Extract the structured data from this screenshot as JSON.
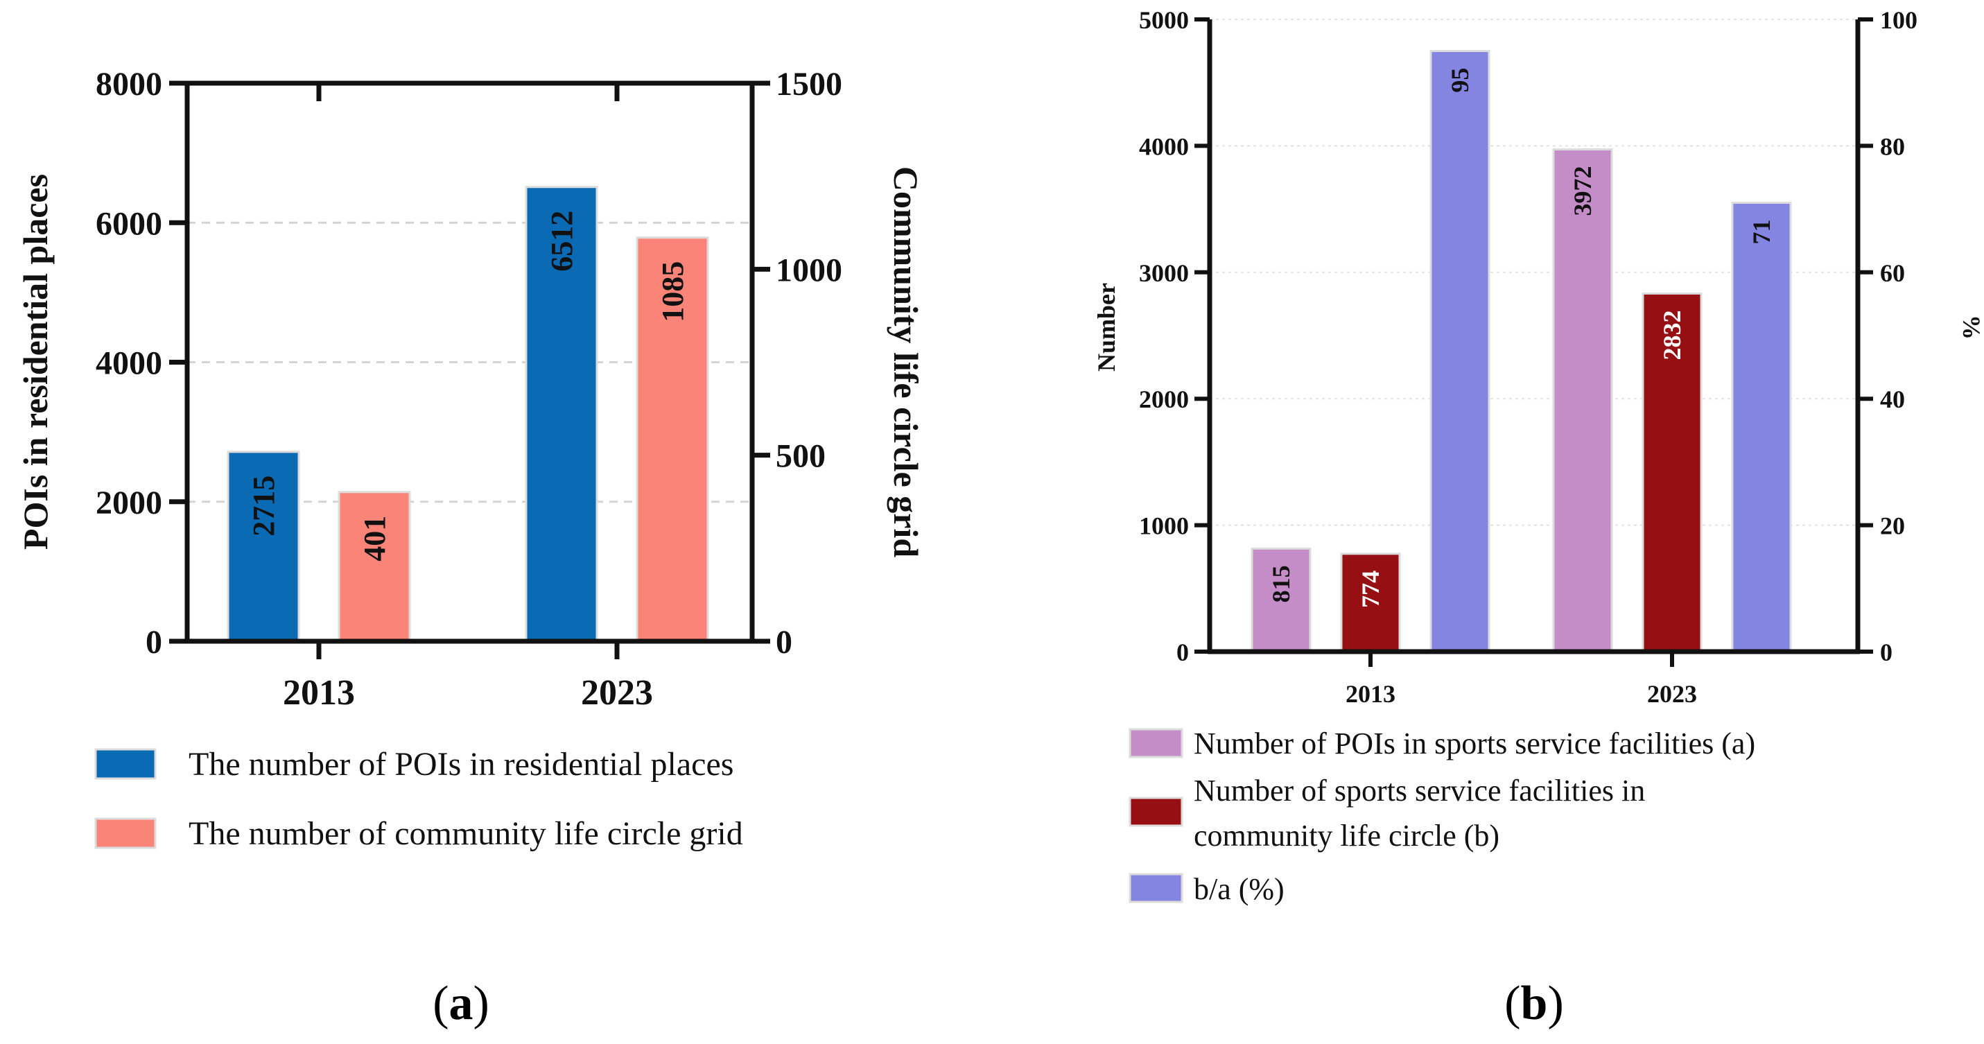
{
  "chart_data": [
    {
      "panel": "a",
      "type": "bar",
      "categories": [
        "2013",
        "2023"
      ],
      "series": [
        {
          "name": "The number of POIs in residential places",
          "axis": "left",
          "color": "#0a6ab4",
          "values": [
            2715,
            6512
          ]
        },
        {
          "name": "The number of community life circle grid",
          "axis": "right",
          "color": "#fa8478",
          "values": [
            401,
            1085
          ]
        }
      ],
      "ylabel": "POIs in residential places",
      "ylabel_right": "Community life circle grid",
      "ylim": [
        0,
        8000
      ],
      "ylim_right": [
        0,
        1500
      ],
      "yticks": [
        "0",
        "2000",
        "4000",
        "6000",
        "8000"
      ],
      "yticks_right": [
        "0",
        "500",
        "1000",
        "1500"
      ],
      "grid": true,
      "legend_position": "bottom"
    },
    {
      "panel": "b",
      "type": "bar",
      "categories": [
        "2013",
        "2023"
      ],
      "series": [
        {
          "name": "Number of POIs in sports service facilities (a)",
          "axis": "left",
          "color": "#c58dc8",
          "values": [
            815,
            3972
          ]
        },
        {
          "name": "Number of sports service facilities in community life circle (b)",
          "legend_lines": [
            "Number of sports service facilities in",
            "community life circle (b)"
          ],
          "axis": "left",
          "color": "#960f12",
          "values": [
            774,
            2832
          ]
        },
        {
          "name": "b/a (%)",
          "axis": "right",
          "color": "#8385e0",
          "values": [
            95,
            71
          ]
        }
      ],
      "ylabel": "Number",
      "ylabel_right": "%",
      "ylim": [
        0,
        5000
      ],
      "ylim_right": [
        0,
        100
      ],
      "yticks": [
        "0",
        "1000",
        "2000",
        "3000",
        "4000",
        "5000"
      ],
      "yticks_right": [
        "0",
        "20",
        "40",
        "60",
        "80",
        "100"
      ],
      "grid": true,
      "legend_position": "bottom"
    }
  ],
  "captions": {
    "a": "a",
    "b": "b"
  }
}
